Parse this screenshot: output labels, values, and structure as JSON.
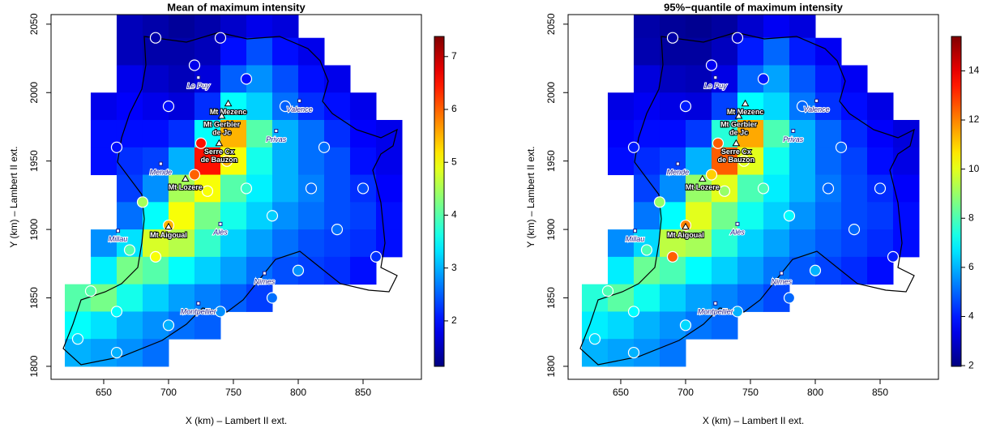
{
  "chart_data": [
    {
      "type": "heatmap",
      "title": "Mean of maximum intensity",
      "xlabel": "X (km) – Lambert II ext.",
      "ylabel": "Y (km) – Lambert II ext.",
      "xlim": [
        609.4,
        895
      ],
      "ylim": [
        1790.5,
        2057
      ],
      "xticks": [
        650,
        700,
        750,
        800,
        850
      ],
      "yticks": [
        1800,
        1850,
        1900,
        1950,
        2000,
        2050
      ],
      "x": [
        630,
        650,
        670,
        690,
        710,
        730,
        750,
        770,
        790,
        810,
        830,
        850,
        870
      ],
      "y": [
        2050,
        2030,
        2010,
        1990,
        1970,
        1950,
        1930,
        1910,
        1890,
        1870,
        1850,
        1830,
        1810
      ],
      "values": [
        [
          null,
          null,
          1.5,
          1.4,
          1.3,
          1.4,
          1.6,
          1.8,
          1.7,
          null,
          null,
          null,
          null
        ],
        [
          null,
          null,
          1.5,
          1.4,
          1.4,
          1.5,
          2.0,
          2.4,
          2.0,
          1.8,
          null,
          null,
          null
        ],
        [
          null,
          null,
          1.8,
          1.6,
          1.5,
          1.7,
          2.5,
          2.8,
          2.4,
          2.0,
          1.8,
          null,
          null
        ],
        [
          null,
          1.8,
          1.9,
          1.8,
          1.7,
          2.2,
          3.5,
          3.2,
          2.6,
          2.2,
          2.0,
          1.8,
          null
        ],
        [
          null,
          2.0,
          2.0,
          2.0,
          2.2,
          3.5,
          5.5,
          4.0,
          3.0,
          2.6,
          2.2,
          1.9,
          1.8
        ],
        [
          null,
          2.0,
          2.2,
          2.3,
          3.0,
          6.5,
          5.0,
          3.6,
          3.0,
          2.6,
          2.4,
          2.0,
          1.8
        ],
        [
          null,
          null,
          2.3,
          2.8,
          4.5,
          5.0,
          4.0,
          3.4,
          3.0,
          2.7,
          2.4,
          2.2,
          1.9
        ],
        [
          null,
          null,
          2.6,
          3.5,
          5.0,
          4.2,
          3.6,
          3.2,
          2.8,
          2.6,
          2.4,
          2.3,
          2.0
        ],
        [
          null,
          2.8,
          3.3,
          4.8,
          4.6,
          3.8,
          3.2,
          2.9,
          2.6,
          2.4,
          2.3,
          2.2,
          2.0
        ],
        [
          null,
          3.4,
          4.2,
          4.0,
          3.5,
          3.2,
          2.9,
          2.6,
          2.4,
          2.3,
          2.2,
          2.0,
          null
        ],
        [
          4.0,
          4.2,
          3.6,
          3.2,
          2.9,
          2.7,
          2.5,
          2.3,
          null,
          null,
          null,
          null,
          null
        ],
        [
          3.5,
          3.3,
          3.0,
          2.8,
          2.6,
          2.5,
          null,
          null,
          null,
          null,
          null,
          null,
          null
        ],
        [
          3.0,
          2.9,
          2.8,
          2.6,
          null,
          null,
          null,
          null,
          null,
          null,
          null,
          null,
          null
        ]
      ],
      "colorbar": {
        "lim": [
          1.14,
          7.38
        ],
        "ticks": [
          2,
          3,
          4,
          5,
          6,
          7
        ]
      },
      "points": {
        "x": [
          700,
          725,
          720,
          730,
          745,
          690,
          670,
          640,
          660,
          700,
          720,
          760,
          790,
          820,
          850,
          860,
          830,
          800,
          780,
          740,
          700,
          660,
          630,
          680,
          760,
          780,
          810,
          690,
          740,
          660
        ],
        "y": [
          1903,
          1963,
          1940,
          1928,
          1950,
          1880,
          1885,
          1855,
          1840,
          1990,
          2020,
          2010,
          1990,
          1960,
          1930,
          1880,
          1900,
          1870,
          1850,
          1840,
          1830,
          1810,
          1820,
          1920,
          1930,
          1910,
          1930,
          2040,
          2040,
          1960
        ],
        "values": [
          5.5,
          6.5,
          6,
          5,
          5.5,
          5,
          4,
          4,
          3.5,
          2,
          1.8,
          2,
          2.5,
          2.6,
          2.4,
          2.2,
          2.6,
          2.8,
          2.6,
          2.8,
          3,
          3,
          3.2,
          4.5,
          3.8,
          3.2,
          2.6,
          1.4,
          1.6,
          2.0
        ]
      },
      "places": [
        {
          "lines": [
            "Le Puy"
          ],
          "x": 723,
          "y": 2011,
          "kind": "city"
        },
        {
          "lines": [
            "Valence"
          ],
          "x": 801,
          "y": 1994,
          "kind": "city"
        },
        {
          "lines": [
            "Privas"
          ],
          "x": 783,
          "y": 1972,
          "kind": "city"
        },
        {
          "lines": [
            "Mende"
          ],
          "x": 694,
          "y": 1948,
          "kind": "city"
        },
        {
          "lines": [
            "Millau"
          ],
          "x": 661,
          "y": 1899,
          "kind": "city"
        },
        {
          "lines": [
            "Alès"
          ],
          "x": 740,
          "y": 1904,
          "kind": "city"
        },
        {
          "lines": [
            "Nimes"
          ],
          "x": 774,
          "y": 1868,
          "kind": "city"
        },
        {
          "lines": [
            "Montpellier"
          ],
          "x": 723,
          "y": 1846,
          "kind": "city"
        },
        {
          "lines": [
            "Mt Mezenc"
          ],
          "x": 746,
          "y": 1992,
          "kind": "summit"
        },
        {
          "lines": [
            "Mt Gerbier",
            "de Jc"
          ],
          "x": 741,
          "y": 1983,
          "kind": "summit"
        },
        {
          "lines": [
            "Serre Cx",
            "de Bauzon"
          ],
          "x": 739,
          "y": 1963,
          "kind": "summit"
        },
        {
          "lines": [
            "Mt Lozere"
          ],
          "x": 713,
          "y": 1937,
          "kind": "summit"
        },
        {
          "lines": [
            "Mt Aigoual"
          ],
          "x": 700,
          "y": 1902,
          "kind": "summit"
        }
      ]
    },
    {
      "type": "heatmap",
      "title": "95%−quantile of maximum intensity",
      "xlabel": "X (km) – Lambert II ext.",
      "ylabel": "Y (km) – Lambert II ext.",
      "xlim": [
        609.4,
        895
      ],
      "ylim": [
        1790.5,
        2057
      ],
      "xticks": [
        650,
        700,
        750,
        800,
        850
      ],
      "yticks": [
        1800,
        1850,
        1900,
        1950,
        2000,
        2050
      ],
      "x": [
        630,
        650,
        670,
        690,
        710,
        730,
        750,
        770,
        790,
        810,
        830,
        850,
        870
      ],
      "y": [
        2050,
        2030,
        2010,
        1990,
        1970,
        1950,
        1930,
        1910,
        1890,
        1870,
        1850,
        1830,
        1810
      ],
      "values": [
        [
          null,
          null,
          2.5,
          2.3,
          2.2,
          2.4,
          3.0,
          3.5,
          3.2,
          null,
          null,
          null,
          null
        ],
        [
          null,
          null,
          2.6,
          2.4,
          2.4,
          2.8,
          4.0,
          5.0,
          4.0,
          3.5,
          null,
          null,
          null
        ],
        [
          null,
          null,
          3.2,
          2.8,
          2.7,
          3.3,
          5.0,
          5.8,
          4.8,
          4.0,
          3.5,
          null,
          null
        ],
        [
          null,
          3.3,
          3.5,
          3.3,
          3.2,
          4.5,
          7.0,
          6.5,
          5.2,
          4.3,
          3.8,
          3.3,
          null
        ],
        [
          null,
          3.6,
          3.8,
          3.8,
          4.4,
          7.5,
          11.5,
          8.0,
          6.0,
          5.0,
          4.2,
          3.6,
          3.2
        ],
        [
          null,
          3.8,
          4.2,
          4.5,
          6.0,
          12.5,
          10.0,
          7.2,
          6.0,
          5.0,
          4.5,
          3.8,
          3.3
        ],
        [
          null,
          null,
          4.5,
          5.5,
          9.0,
          10.0,
          8.0,
          6.8,
          6.0,
          5.2,
          4.6,
          4.2,
          3.6
        ],
        [
          null,
          null,
          5.2,
          7.0,
          10.0,
          8.5,
          7.2,
          6.4,
          5.6,
          5.0,
          4.6,
          4.4,
          3.8
        ],
        [
          null,
          5.5,
          6.5,
          9.5,
          9.2,
          7.5,
          6.4,
          5.8,
          5.2,
          4.8,
          4.5,
          4.2,
          3.8
        ],
        [
          null,
          6.8,
          8.4,
          8.0,
          7.0,
          6.4,
          5.8,
          5.2,
          4.8,
          4.5,
          4.2,
          3.8,
          null
        ],
        [
          7.5,
          8.2,
          7.2,
          6.4,
          5.8,
          5.4,
          5.0,
          4.6,
          null,
          null,
          null,
          null,
          null
        ],
        [
          6.8,
          6.5,
          6.0,
          5.6,
          5.2,
          5.0,
          null,
          null,
          null,
          null,
          null,
          null,
          null
        ],
        [
          6.0,
          5.8,
          5.6,
          5.2,
          null,
          null,
          null,
          null,
          null,
          null,
          null,
          null,
          null
        ]
      ],
      "colorbar": {
        "lim": [
          1.97,
          15.4
        ],
        "ticks": [
          2,
          4,
          6,
          8,
          10,
          12,
          14
        ]
      },
      "points": {
        "x": [
          700,
          725,
          720,
          730,
          745,
          690,
          670,
          640,
          660,
          700,
          720,
          760,
          790,
          820,
          850,
          860,
          830,
          800,
          780,
          740,
          700,
          660,
          630,
          680,
          760,
          780,
          810,
          690,
          740,
          660
        ],
        "y": [
          1903,
          1963,
          1940,
          1928,
          1950,
          1880,
          1885,
          1855,
          1840,
          1990,
          2020,
          2010,
          1990,
          1960,
          1930,
          1880,
          1900,
          1870,
          1850,
          1840,
          1830,
          1810,
          1820,
          1920,
          1930,
          1910,
          1930,
          2040,
          2040,
          1960
        ],
        "values": [
          12,
          12.5,
          11,
          9,
          10,
          12.5,
          8,
          8,
          7,
          4,
          3.5,
          4,
          5,
          5,
          4.5,
          4,
          5,
          6,
          5,
          6,
          6.5,
          6,
          6.5,
          9,
          8,
          7,
          5,
          2.5,
          3,
          4
        ]
      },
      "places": [
        {
          "lines": [
            "Le Puy"
          ],
          "x": 723,
          "y": 2011,
          "kind": "city"
        },
        {
          "lines": [
            "Valence"
          ],
          "x": 801,
          "y": 1994,
          "kind": "city"
        },
        {
          "lines": [
            "Privas"
          ],
          "x": 783,
          "y": 1972,
          "kind": "city"
        },
        {
          "lines": [
            "Mende"
          ],
          "x": 694,
          "y": 1948,
          "kind": "city"
        },
        {
          "lines": [
            "Millau"
          ],
          "x": 661,
          "y": 1899,
          "kind": "city"
        },
        {
          "lines": [
            "Alès"
          ],
          "x": 740,
          "y": 1904,
          "kind": "city"
        },
        {
          "lines": [
            "Nimes"
          ],
          "x": 774,
          "y": 1868,
          "kind": "city"
        },
        {
          "lines": [
            "Montpellier"
          ],
          "x": 723,
          "y": 1846,
          "kind": "city"
        },
        {
          "lines": [
            "Mt Mezenc"
          ],
          "x": 746,
          "y": 1992,
          "kind": "summit"
        },
        {
          "lines": [
            "Mt Gerbier",
            "de Jc"
          ],
          "x": 741,
          "y": 1983,
          "kind": "summit"
        },
        {
          "lines": [
            "Serre Cx",
            "de Bauzon"
          ],
          "x": 739,
          "y": 1963,
          "kind": "summit"
        },
        {
          "lines": [
            "Mt Lozere"
          ],
          "x": 713,
          "y": 1937,
          "kind": "summit"
        },
        {
          "lines": [
            "Mt Aigoual"
          ],
          "x": 700,
          "y": 1902,
          "kind": "summit"
        }
      ]
    }
  ]
}
